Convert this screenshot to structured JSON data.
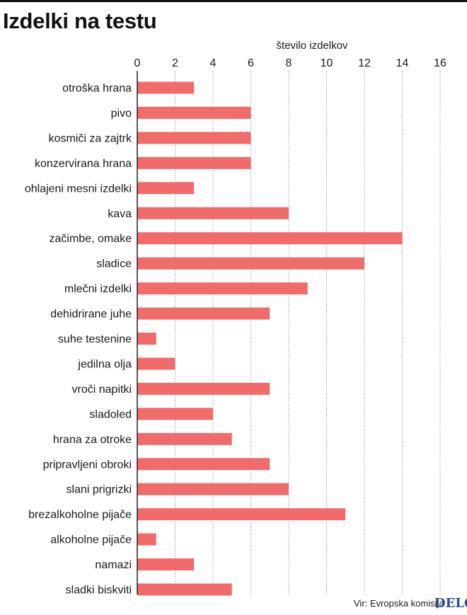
{
  "title": "Izdelki na testu",
  "source": "Vir: Evropska komisija",
  "logo": "DELO",
  "colors": {
    "bar": "#f26b6b",
    "grid": "#999999",
    "axis": "#222222"
  },
  "chart_data": {
    "type": "bar",
    "orientation": "horizontal",
    "title": "Izdelki na testu",
    "xlabel": "število izdelkov",
    "ylabel": "",
    "xlim": [
      0,
      16
    ],
    "x_ticks": [
      0,
      2,
      4,
      6,
      8,
      10,
      12,
      14,
      16
    ],
    "grid": true,
    "categories": [
      "otroška hrana",
      "pivo",
      "kosmiči za zajtrk",
      "konzervirana hrana",
      "ohlajeni mesni izdelki",
      "kava",
      "začimbe, omake",
      "sladice",
      "mlečni izdelki",
      "dehidrirane juhe",
      "suhe testenine",
      "jedilna olja",
      "vroči napitki",
      "sladoled",
      "hrana za otroke",
      "pripravljeni obroki",
      "slani prigrizki",
      "brezalkoholne pijače",
      "alkoholne pijače",
      "namazi",
      "sladki biskviti"
    ],
    "values": [
      3,
      6,
      6,
      6,
      3,
      8,
      14,
      12,
      9,
      7,
      1,
      2,
      7,
      4,
      5,
      7,
      8,
      11,
      1,
      3,
      5
    ]
  }
}
